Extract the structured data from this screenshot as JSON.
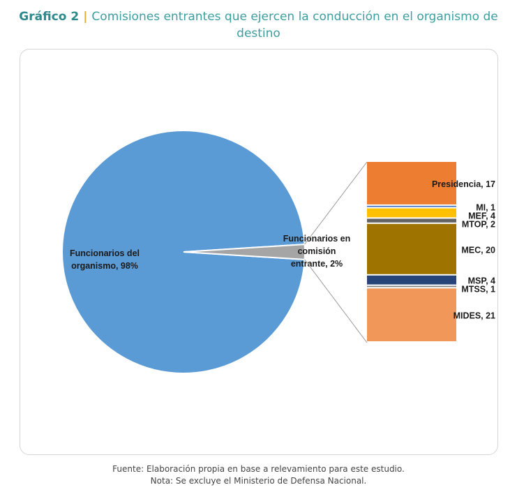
{
  "header": {
    "figure_number": "Gráfico 2",
    "separator": "|",
    "title": "Comisiones entrantes que ejercen la conducción en el organismo de destino"
  },
  "chart_data": [
    {
      "type": "pie",
      "slices": [
        {
          "label": "Funcionarios del organismo, 98%",
          "value": 98,
          "color": "#5b9bd5"
        },
        {
          "label": "Funcionarios en comisión entrante, 2%",
          "value": 2,
          "color": "#a5a5a5"
        }
      ]
    },
    {
      "type": "bar",
      "stacked": true,
      "categories": [
        "Presidencia",
        "MI",
        "MEF",
        "MTOP",
        "MEC",
        "MSP",
        "MTSS",
        "MIDES"
      ],
      "values": [
        17,
        1,
        4,
        2,
        20,
        4,
        1,
        21
      ],
      "labels": [
        "Presidencia, 17",
        "MI, 1",
        "MEF, 4",
        "MTOP, 2",
        "MEC, 20",
        "MSP, 4",
        "MTSS, 1",
        "MIDES, 21"
      ],
      "colors": [
        "#ed7d31",
        "#4472c4",
        "#ffc000",
        "#636363",
        "#9e7300",
        "#264478",
        "#7f7f7f",
        "#f1975a"
      ]
    }
  ],
  "footer": {
    "source": "Fuente: Elaboración propia en base a relevamiento para este estudio.",
    "note": "Nota: Se excluye el Ministerio de Defensa Nacional."
  }
}
